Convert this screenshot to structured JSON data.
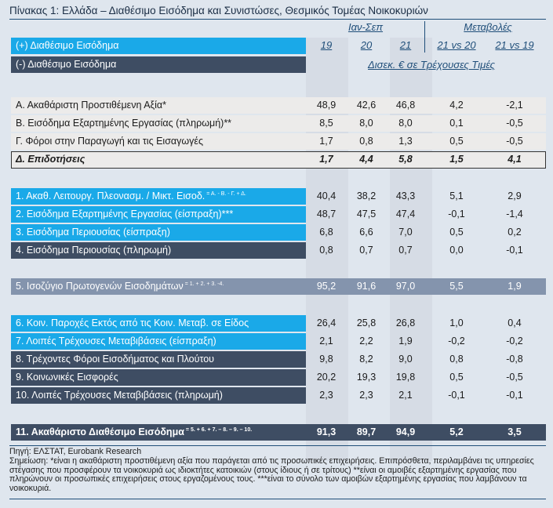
{
  "title": "Πίνακας 1: Ελλάδα – Διαθέσιμο Εισόδημα και Συνιστώσες, Θεσμικός Τομέας Νοικοκυριών",
  "header": {
    "legend_plus": "(+) Διαθέσιμο Εισόδημα",
    "legend_minus": "(-) Διαθέσιμο Εισόδημα",
    "period": "Ιαν-Σεπ",
    "changes": "Μεταβολές",
    "years": [
      "19",
      "20",
      "21"
    ],
    "change_cols": [
      "21 vs 20",
      "21 vs 19"
    ],
    "units": "Δισεκ. € σε Τρέχουσες Τιμές"
  },
  "rows": [
    {
      "label": "Α. Ακαθάριστη Προστιθέμενη Αξία*",
      "sup": "",
      "v": [
        "48,9",
        "42,6",
        "46,8"
      ],
      "c": [
        "4,2",
        "-2,1"
      ],
      "style": "light"
    },
    {
      "label": "Β. Εισόδημα Εξαρτημένης Εργασίας (πληρωμή)**",
      "sup": "",
      "v": [
        "8,5",
        "8,0",
        "8,0"
      ],
      "c": [
        "0,1",
        "-0,5"
      ],
      "style": "light"
    },
    {
      "label": "Γ. Φόροι στην Παραγωγή και τις Εισαγωγές",
      "sup": "",
      "v": [
        "1,7",
        "0,8",
        "1,3"
      ],
      "c": [
        "0,5",
        "-0,5"
      ],
      "style": "light"
    },
    {
      "label": "Δ. Επιδοτήσεις",
      "sup": "",
      "v": [
        "1,7",
        "4,4",
        "5,8"
      ],
      "c": [
        "1,5",
        "4,1"
      ],
      "style": "boxed"
    },
    {
      "label": "1. Ακαθ. Λειτουργ. Πλεονασμ. / Μικτ. Εισοδ.",
      "sup": "= Α. - Β. - Γ. + Δ.",
      "v": [
        "40,4",
        "38,2",
        "43,3"
      ],
      "c": [
        "5,1",
        "2,9"
      ],
      "style": "cyan"
    },
    {
      "label": "2. Εισόδημα Εξαρτημένης Εργασίας (είσπραξη)***",
      "sup": "",
      "v": [
        "48,7",
        "47,5",
        "47,4"
      ],
      "c": [
        "-0,1",
        "-1,4"
      ],
      "style": "cyan"
    },
    {
      "label": "3. Εισόδημα Περιουσίας (είσπραξη)",
      "sup": "",
      "v": [
        "6,8",
        "6,6",
        "7,0"
      ],
      "c": [
        "0,5",
        "0,2"
      ],
      "style": "cyan"
    },
    {
      "label": "4. Εισόδημα Περιουσίας (πληρωμή)",
      "sup": "",
      "v": [
        "0,8",
        "0,7",
        "0,7"
      ],
      "c": [
        "0,0",
        "-0,1"
      ],
      "style": "navy"
    },
    {
      "label": "5. Ισοζύγιο Πρωτογενών Εισοδημάτων",
      "sup": "= 1. + 2. + 3. -4.",
      "v": [
        "95,2",
        "91,6",
        "97,0"
      ],
      "c": [
        "5,5",
        "1,9"
      ],
      "style": "slate"
    },
    {
      "label": "6. Κοιν. Παροχές Εκτός από τις Κοιν. Μεταβ. σε Είδος",
      "sup": "",
      "v": [
        "26,4",
        "25,8",
        "26,8"
      ],
      "c": [
        "1,0",
        "0,4"
      ],
      "style": "cyan"
    },
    {
      "label": "7. Λοιπές Τρέχουσες Μεταβιβάσεις (είσπραξη)",
      "sup": "",
      "v": [
        "2,1",
        "2,2",
        "1,9"
      ],
      "c": [
        "-0,2",
        "-0,2"
      ],
      "style": "cyan"
    },
    {
      "label": "8. Τρέχοντες Φόροι Εισοδήματος και Πλούτου",
      "sup": "",
      "v": [
        "9,8",
        "8,2",
        "9,0"
      ],
      "c": [
        "0,8",
        "-0,8"
      ],
      "style": "navy"
    },
    {
      "label": "9. Κοινωνικές Εισφορές",
      "sup": "",
      "v": [
        "20,2",
        "19,3",
        "19,8"
      ],
      "c": [
        "0,5",
        "-0,5"
      ],
      "style": "navy"
    },
    {
      "label": "10. Λοιπές Τρέχουσες Μεταβιβάσεις (πληρωμή)",
      "sup": "",
      "v": [
        "2,3",
        "2,3",
        "2,1"
      ],
      "c": [
        "-0,1",
        "-0,1"
      ],
      "style": "navy"
    },
    {
      "label": "11. Ακαθάριστο Διαθέσιμο Εισόδημα",
      "sup": "= 5. + 6. + 7. – 8. – 9. – 10.",
      "v": [
        "91,3",
        "89,7",
        "94,9"
      ],
      "c": [
        "5,2",
        "3,5"
      ],
      "style": "navy-bold"
    }
  ],
  "footer": {
    "source": "Πηγή: ΕΛΣΤΑΤ, Eurobank Research",
    "note": "Σημείωση: *είναι η ακαθάριστη προστιθέμενη αξία που παράγεται από τις προσωπικές επιχειρήσεις. Επιπρόσθετα, περιλαμβάνει τις υπηρεσίες στέγασης που προσφέρουν τα νοικοκυριά ως ιδιοκτήτες κατοικιών (στους ίδιους ή σε τρίτους) **είναι οι αμοιβές εξαρτημένης εργασίας που πληρώνουν οι προσωπικές επιχειρήσεις στους εργαζομένους τους. ***είναι το σύνολο των αμοιβών εξαρτημένης εργασίας που λαμβάνουν τα νοικοκυριά."
  },
  "colors": {
    "cyan": "#1aa9e8",
    "navy": "#3e4d63",
    "slate": "#8494ad",
    "light": "#ecebea",
    "link": "#1f4e79"
  }
}
